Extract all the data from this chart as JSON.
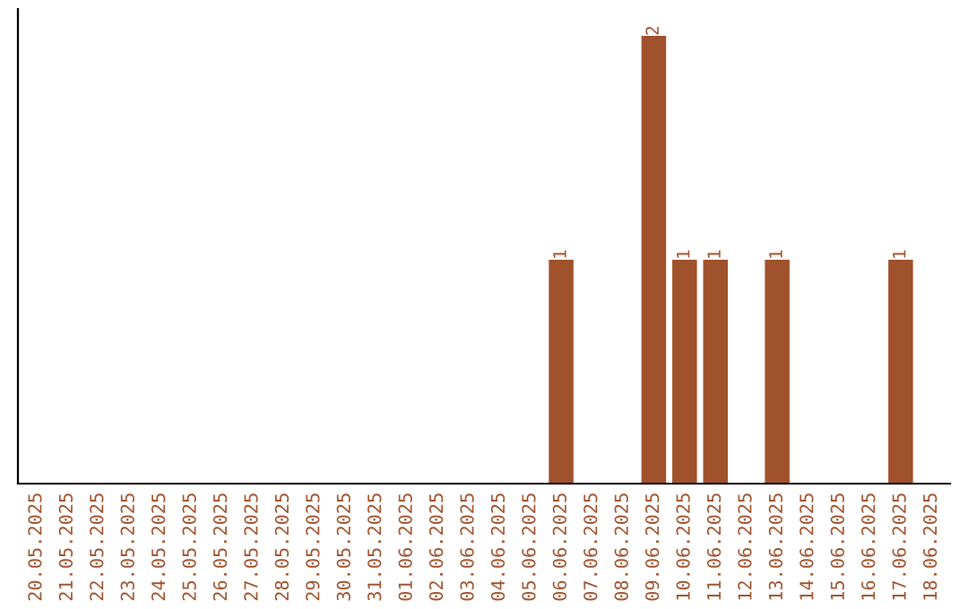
{
  "chart_data": {
    "type": "bar",
    "categories": [
      "20.05.2025",
      "21.05.2025",
      "22.05.2025",
      "23.05.2025",
      "24.05.2025",
      "25.05.2025",
      "26.05.2025",
      "27.05.2025",
      "28.05.2025",
      "29.05.2025",
      "30.05.2025",
      "31.05.2025",
      "01.06.2025",
      "02.06.2025",
      "03.06.2025",
      "04.06.2025",
      "05.06.2025",
      "06.06.2025",
      "07.06.2025",
      "08.06.2025",
      "09.06.2025",
      "10.06.2025",
      "11.06.2025",
      "12.06.2025",
      "13.06.2025",
      "14.06.2025",
      "15.06.2025",
      "16.06.2025",
      "17.06.2025",
      "18.06.2025"
    ],
    "values": [
      null,
      null,
      null,
      null,
      null,
      null,
      null,
      null,
      null,
      null,
      null,
      null,
      null,
      null,
      null,
      null,
      null,
      1,
      null,
      null,
      2,
      1,
      1,
      null,
      1,
      null,
      null,
      null,
      1,
      null
    ],
    "data_labels": true,
    "color": "#a0522d",
    "tick_labels": "x"
  }
}
